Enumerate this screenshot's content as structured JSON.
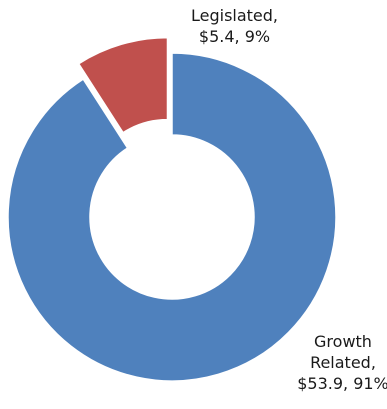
{
  "chart_data": {
    "type": "pie",
    "variant": "donut",
    "exploded_slice": "Legislated",
    "slices": [
      {
        "name": "Growth Related",
        "value": 53.9,
        "percent": 91,
        "color": "#4f81bd",
        "label_lines": [
          "Growth",
          "Related,",
          "$53.9, 91%"
        ]
      },
      {
        "name": "Legislated",
        "value": 5.4,
        "percent": 9,
        "color": "#c0504d",
        "label_lines": [
          "Legislated,",
          "$5.4, 9%"
        ]
      }
    ]
  }
}
